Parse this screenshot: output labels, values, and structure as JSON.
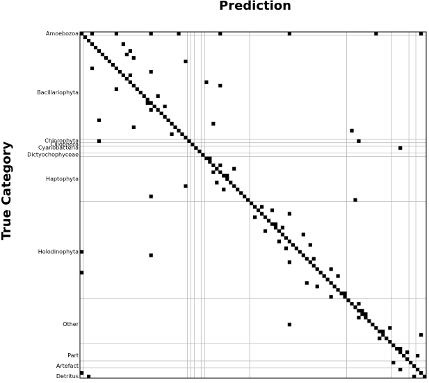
{
  "chart_data": {
    "type": "heatmap",
    "title": "Prediction",
    "ylabel": "True Category",
    "categories": [
      "Amoebozoa",
      null,
      null,
      null,
      null,
      null,
      null,
      null,
      null,
      null,
      null,
      null,
      null,
      null,
      null,
      null,
      null,
      "Bacillariophyta",
      null,
      null,
      null,
      null,
      null,
      null,
      null,
      null,
      null,
      null,
      null,
      null,
      null,
      "Chlorophyta",
      "Ciliophora",
      "Cyanobacteria",
      null,
      "Dictyochophyceae",
      null,
      null,
      null,
      null,
      null,
      null,
      "Haptophyta",
      null,
      null,
      null,
      null,
      null,
      null,
      null,
      null,
      null,
      null,
      null,
      null,
      null,
      null,
      null,
      null,
      null,
      null,
      null,
      null,
      "Holodinophyta",
      null,
      null,
      null,
      null,
      null,
      null,
      null,
      null,
      null,
      null,
      null,
      null,
      null,
      null,
      null,
      null,
      null,
      null,
      null,
      null,
      "Other",
      null,
      null,
      null,
      null,
      null,
      null,
      null,
      null,
      "Part",
      null,
      null,
      "Artefact",
      null,
      null,
      "Detritus"
    ],
    "xlim": [
      0,
      100
    ],
    "ylim": [
      100,
      0
    ],
    "color": "#000000",
    "x": [
      0,
      1,
      2,
      3,
      4,
      5,
      6,
      7,
      8,
      9,
      10,
      11,
      12,
      13,
      14,
      15,
      16,
      17,
      18,
      19,
      20,
      21,
      22,
      23,
      24,
      25,
      26,
      27,
      28,
      29,
      30,
      31,
      32,
      33,
      34,
      35,
      36,
      37,
      38,
      39,
      40,
      41,
      42,
      43,
      44,
      45,
      46,
      47,
      48,
      49,
      50,
      51,
      52,
      53,
      54,
      55,
      56,
      57,
      58,
      59,
      60,
      61,
      62,
      63,
      64,
      65,
      66,
      67,
      68,
      69,
      70,
      71,
      72,
      73,
      74,
      75,
      76,
      77,
      78,
      79,
      80,
      81,
      82,
      83,
      84,
      85,
      86,
      87,
      88,
      89,
      90,
      91,
      92,
      93,
      94,
      95,
      96,
      97,
      98,
      99,
      3,
      10,
      20,
      28,
      40,
      60,
      85,
      98,
      12,
      14,
      13,
      15,
      30,
      3,
      20,
      14,
      36,
      40,
      10,
      22,
      19,
      24,
      20,
      5,
      38,
      15,
      78,
      26,
      5,
      80,
      92,
      37,
      40,
      44,
      38,
      42,
      39,
      30,
      41,
      20,
      79,
      52,
      55,
      60,
      50,
      56,
      58,
      53,
      64,
      57,
      66,
      59,
      0,
      20,
      67,
      60,
      72,
      0,
      74,
      65,
      68,
      76,
      72,
      80,
      81,
      82,
      80,
      60,
      89,
      87,
      98,
      86,
      92,
      94,
      97,
      90,
      92,
      0,
      96,
      2
    ],
    "y": [
      0,
      1,
      2,
      3,
      4,
      5,
      6,
      7,
      8,
      9,
      10,
      11,
      12,
      13,
      14,
      15,
      16,
      17,
      18,
      19,
      20,
      21,
      22,
      23,
      24,
      25,
      26,
      27,
      28,
      29,
      30,
      31,
      32,
      33,
      34,
      35,
      36,
      37,
      38,
      39,
      40,
      41,
      42,
      43,
      44,
      45,
      46,
      47,
      48,
      49,
      50,
      51,
      52,
      53,
      54,
      55,
      56,
      57,
      58,
      59,
      60,
      61,
      62,
      63,
      64,
      65,
      66,
      67,
      68,
      69,
      70,
      71,
      72,
      73,
      74,
      75,
      76,
      77,
      78,
      79,
      80,
      81,
      82,
      83,
      84,
      85,
      86,
      87,
      88,
      89,
      90,
      91,
      92,
      93,
      94,
      95,
      96,
      97,
      98,
      99,
      0,
      0,
      0,
      0,
      0,
      0,
      0,
      0,
      3,
      5,
      6,
      7,
      8,
      10,
      11,
      12,
      14,
      15,
      16,
      18,
      20,
      21,
      22,
      25,
      26,
      27,
      28,
      29,
      31,
      31,
      33,
      36,
      38,
      39,
      40,
      41,
      43,
      44,
      45,
      47,
      48,
      50,
      51,
      52,
      53,
      55,
      56,
      57,
      58,
      60,
      61,
      62,
      63,
      64,
      65,
      66,
      68,
      69,
      70,
      72,
      73,
      75,
      76,
      78,
      80,
      81,
      82,
      84,
      85,
      86,
      87,
      88,
      91,
      92,
      93,
      95,
      97,
      98,
      99,
      99
    ]
  }
}
